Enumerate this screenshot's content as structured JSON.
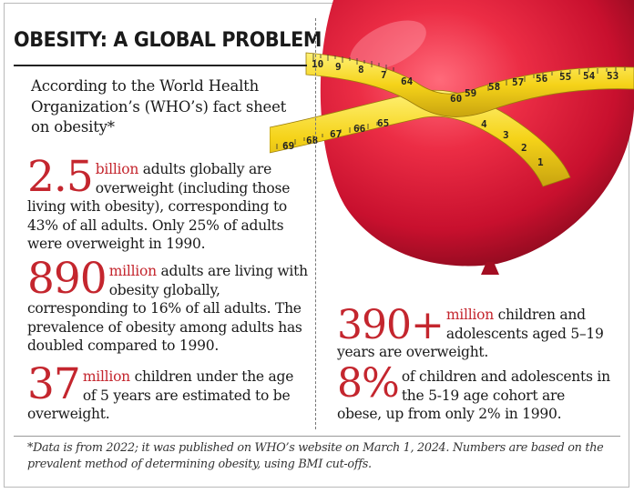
{
  "title": "OBESITY: A GLOBAL PROBLEM",
  "intro": "According to the World Health Organization’s (WHO’s) fact sheet on obesity*",
  "facts": [
    {
      "number": "2.5",
      "unit": "billion",
      "text": " adults globally are overweight (including those living with obesity), corresponding to 43% of all adults. Only 25% of adults were overweight in 1990."
    },
    {
      "number": "890",
      "unit": "million",
      "text": " adults are living with obesity globally, corresponding to 16% of all adults. The prevalence of obesity among adults has doubled compared to 1990."
    },
    {
      "number": "37",
      "unit": "million",
      "text": " children under the age of 5 years are estimated to be overweight."
    },
    {
      "number": "390+",
      "unit": "million",
      "text": " children and adolescents aged 5–19 years are overweight."
    },
    {
      "number": "8%",
      "unit": "",
      "text": "of children and adolescents in the 5-19 age cohort are obese, up from only 2% in 1990."
    }
  ],
  "footnote": "*Data is from 2022; it was published on WHO’s website on March 1, 2024. Numbers are based on the prevalent method of determining obesity, using BMI cut-offs.",
  "tape_upper_numbers": [
    "10",
    "9",
    "8",
    "7",
    "64",
    "60",
    "59",
    "58",
    "57",
    "56",
    "55",
    "54",
    "53"
  ],
  "tape_lower_numbers": [
    "69",
    "68",
    "67",
    "66",
    "65",
    "4",
    "3",
    "2",
    "1"
  ],
  "colors": {
    "accent": "#c4262e",
    "balloon": "#e0213b",
    "tape": "#f1d21c"
  }
}
